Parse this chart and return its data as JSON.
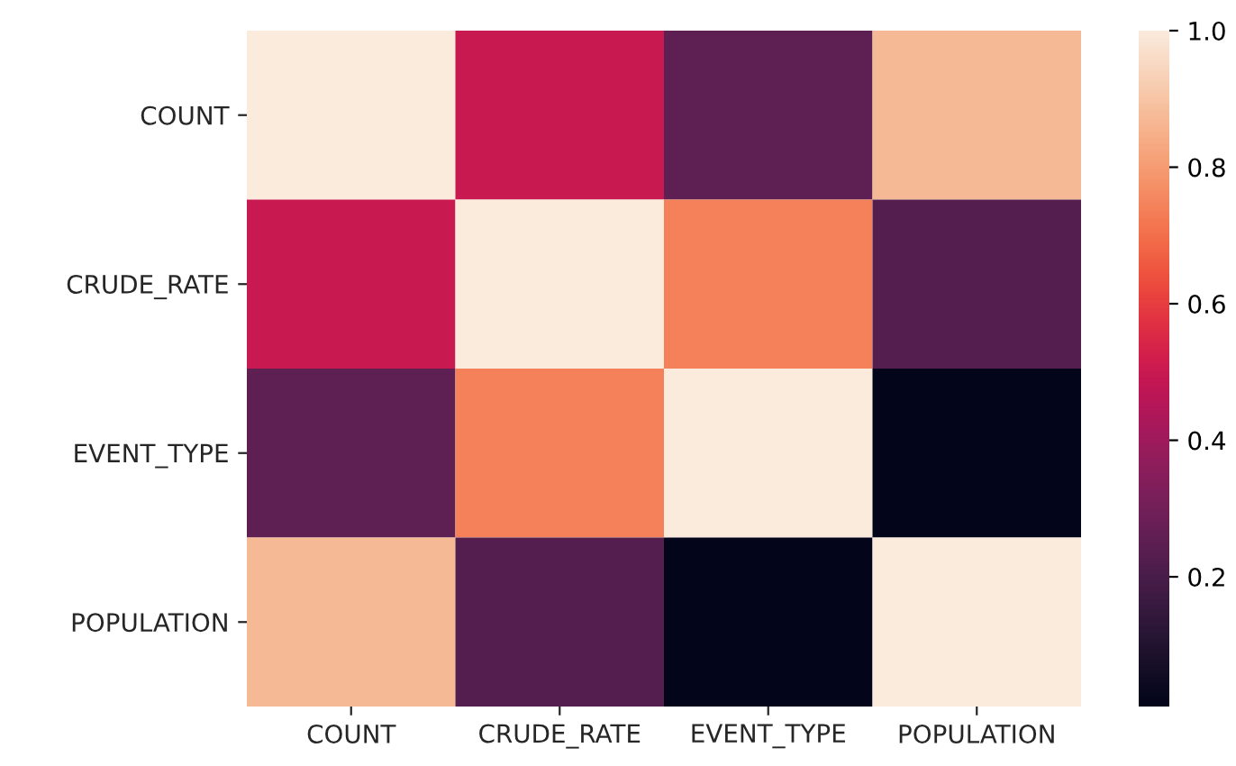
{
  "chart_data": {
    "type": "heatmap",
    "categories": [
      "COUNT",
      "CRUDE_RATE",
      "EVENT_TYPE",
      "POPULATION"
    ],
    "y_categories": [
      "COUNT",
      "CRUDE_RATE",
      "EVENT_TYPE",
      "POPULATION"
    ],
    "cells": [
      [
        1.0,
        0.5,
        0.25,
        0.87
      ],
      [
        0.5,
        1.0,
        0.74,
        0.23
      ],
      [
        0.25,
        0.74,
        1.0,
        0.01
      ],
      [
        0.87,
        0.23,
        0.01,
        1.0
      ]
    ],
    "clim": [
      0.01,
      1.0
    ],
    "cticks": [
      {
        "value": 0.2,
        "label": "0.2"
      },
      {
        "value": 0.4,
        "label": "0.4"
      },
      {
        "value": 0.6,
        "label": "0.6"
      },
      {
        "value": 0.8,
        "label": "0.8"
      },
      {
        "value": 1.0,
        "label": "1.0"
      }
    ]
  }
}
